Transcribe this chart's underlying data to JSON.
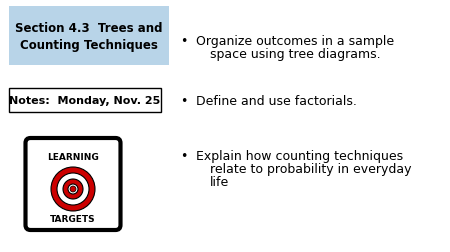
{
  "title_box_text": "Section 4.3  Trees and\nCounting Techniques",
  "title_box_bg": "#b8d4e8",
  "notes_box_text": "Notes:  Monday, Nov. 25",
  "notes_box_bg": "#ffffff",
  "notes_box_border": "#000000",
  "bullet1_line1": "Organize outcomes in a sample",
  "bullet1_line2": "space using tree diagrams.",
  "bullet2": "Define and use factorials.",
  "bullet3_line1": "Explain how counting techniques",
  "bullet3_line2": "relate to probability in everyday",
  "bullet3_line3": "life",
  "background_color": "#ffffff",
  "text_color": "#000000",
  "learning_text_top": "LEARNING",
  "learning_text_bot": "TARGETS",
  "title_fontsize": 8.5,
  "notes_fontsize": 8.0,
  "bullet_fontsize": 9.0
}
